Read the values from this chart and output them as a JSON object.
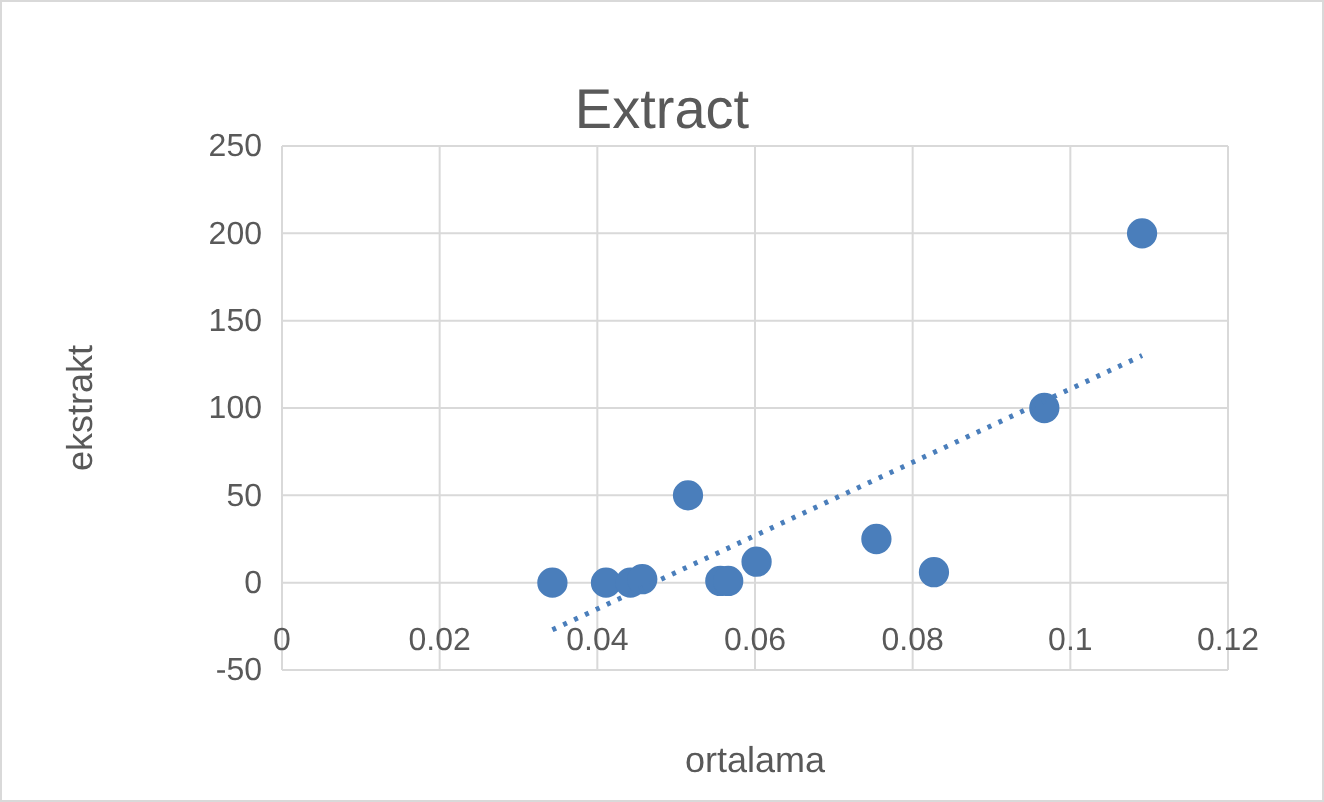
{
  "chart_data": {
    "type": "scatter",
    "title": "Extract",
    "xlabel": "ortalama",
    "ylabel": "ekstrakt",
    "xlim": [
      0,
      0.12
    ],
    "xticks": [
      0,
      0.02,
      0.04,
      0.06,
      0.08,
      0.1,
      0.12
    ],
    "ylim": [
      -50,
      250
    ],
    "yticks": [
      -50,
      0,
      50,
      100,
      150,
      200,
      250
    ],
    "grid": true,
    "series": [
      {
        "marker": "circle",
        "color": "#4a7ebb",
        "x": [
          0.0343,
          0.0411,
          0.0442,
          0.0457,
          0.0515,
          0.0556,
          0.0566,
          0.0602,
          0.0754,
          0.0827,
          0.0967,
          0.1091
        ],
        "values": [
          0,
          0,
          0,
          2,
          50,
          1,
          1,
          12,
          25,
          6,
          100,
          200
        ]
      },
      {
        "type": "line",
        "color": "#4a7ebb",
        "line_style": "dotted",
        "x": [
          0.0343,
          0.1091
        ],
        "values": [
          -27,
          130
        ]
      }
    ]
  }
}
